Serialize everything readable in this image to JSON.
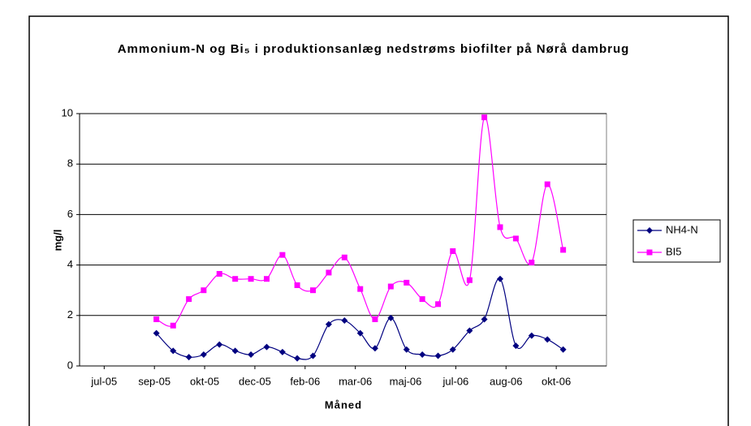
{
  "chart_data": {
    "type": "line",
    "title": "Ammonium-N og Bi₅ i produktionsanlæg nedstrøms biofilter på Nørå dambrug",
    "x_label": "Måned",
    "y_label": "mg/l",
    "x": [
      38601,
      38618,
      38634,
      38649,
      38665,
      38681,
      38697,
      38713,
      38729,
      38744,
      38760,
      38776,
      38792,
      38808,
      38823,
      38839,
      38855,
      38871,
      38887,
      38902,
      38919,
      38934,
      38950,
      38966,
      38982,
      38998,
      39014
    ],
    "series": [
      {
        "name": "NH4-N",
        "color": "#000080",
        "marker": "diamond",
        "values": [
          1.3,
          0.6,
          0.35,
          0.45,
          0.85,
          0.6,
          0.45,
          0.75,
          0.55,
          0.3,
          0.4,
          1.65,
          1.8,
          1.3,
          0.7,
          1.9,
          0.65,
          0.45,
          0.4,
          0.65,
          1.4,
          1.85,
          3.45,
          0.8,
          1.2,
          1.05,
          0.65
        ]
      },
      {
        "name": "BI5",
        "color": "#ff00ff",
        "marker": "square",
        "values": [
          1.85,
          1.6,
          2.65,
          3.0,
          3.65,
          3.45,
          3.45,
          3.45,
          4.4,
          3.2,
          3.0,
          3.7,
          4.3,
          3.05,
          1.85,
          3.15,
          3.3,
          2.65,
          2.45,
          4.55,
          3.4,
          9.85,
          5.5,
          5.05,
          4.1,
          7.2,
          4.6
        ]
      }
    ],
    "xlim": [
      38523,
      39058
    ],
    "xticks": [
      {
        "value": 38548,
        "label": "jul-05"
      },
      {
        "value": 38599,
        "label": "sep-05"
      },
      {
        "value": 38650,
        "label": "okt-05"
      },
      {
        "value": 38701,
        "label": "dec-05"
      },
      {
        "value": 38752,
        "label": "feb-06"
      },
      {
        "value": 38803,
        "label": "mar-06"
      },
      {
        "value": 38854,
        "label": "maj-06"
      },
      {
        "value": 38905,
        "label": "jul-06"
      },
      {
        "value": 38956,
        "label": "aug-06"
      },
      {
        "value": 39007,
        "label": "okt-06"
      }
    ],
    "ylim": [
      0,
      10
    ],
    "yticks": [
      0,
      2,
      4,
      6,
      8,
      10
    ],
    "grid": true,
    "smooth": true,
    "legend": "right"
  }
}
